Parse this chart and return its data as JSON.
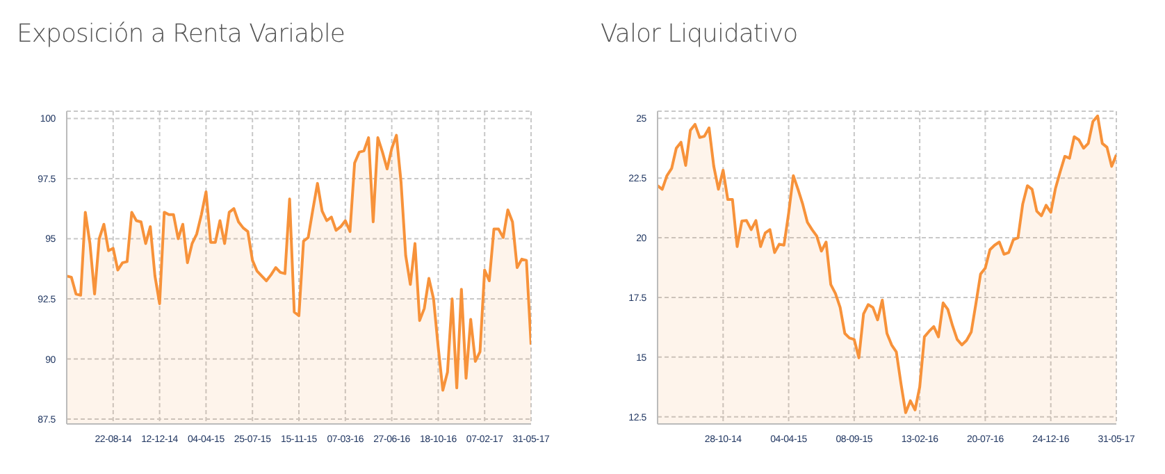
{
  "chart_data": [
    {
      "type": "area",
      "title": "Exposición a Renta Variable",
      "color": "#f7923a",
      "categories": [
        null,
        null,
        null,
        null,
        null,
        null,
        null,
        null,
        null,
        null,
        "22-08-14",
        null,
        null,
        null,
        null,
        null,
        null,
        null,
        null,
        null,
        "12-12-14",
        null,
        null,
        null,
        null,
        null,
        null,
        null,
        null,
        null,
        "04-04-15",
        null,
        null,
        null,
        null,
        null,
        null,
        null,
        null,
        null,
        "25-07-15",
        null,
        null,
        null,
        null,
        null,
        null,
        null,
        null,
        null,
        "15-11-15",
        null,
        null,
        null,
        null,
        null,
        null,
        null,
        null,
        null,
        "07-03-16",
        null,
        null,
        null,
        null,
        null,
        null,
        null,
        null,
        null,
        "27-06-16",
        null,
        null,
        null,
        null,
        null,
        null,
        null,
        null,
        null,
        "18-10-16",
        null,
        null,
        null,
        null,
        null,
        null,
        null,
        null,
        null,
        "07-02-17",
        null,
        null,
        null,
        null,
        null,
        null,
        null,
        null,
        null,
        "31-05-17"
      ],
      "values": [
        93.45,
        93.4,
        92.7,
        92.65,
        96.1,
        94.8,
        92.7,
        95,
        95.6,
        94.5,
        94.6,
        93.7,
        94,
        94.05,
        96.1,
        95.75,
        95.7,
        94.8,
        95.5,
        93.45,
        92.3,
        96.1,
        96,
        96,
        95,
        95.6,
        94,
        94.8,
        95.2,
        96,
        96.95,
        94.85,
        94.85,
        95.75,
        94.8,
        96.1,
        96.25,
        95.7,
        95.45,
        95.3,
        94.1,
        93.65,
        93.45,
        93.25,
        93.5,
        93.8,
        93.6,
        93.55,
        96.65,
        91.95,
        91.8,
        94.9,
        95.05,
        96.2,
        97.3,
        96.15,
        95.75,
        95.9,
        95.35,
        95.5,
        95.75,
        95.3,
        98.15,
        98.6,
        98.65,
        99.2,
        95.7,
        99.2,
        98.6,
        97.9,
        98.75,
        99.3,
        97.35,
        94.3,
        93.1,
        94.8,
        91.6,
        92.1,
        93.35,
        92.5,
        90.5,
        88.7,
        89.45,
        92.5,
        88.8,
        92.9,
        89.2,
        91.65,
        89.9,
        90.3,
        93.7,
        93.25,
        95.4,
        95.4,
        95.05,
        96.2,
        95.7,
        93.8,
        94.15,
        94.1,
        90.6
      ],
      "ylim": [
        87.3,
        100.3
      ],
      "yticks": [
        87.5,
        90,
        92.5,
        95,
        97.5,
        100
      ],
      "grid": true
    },
    {
      "type": "area",
      "title": "Valor Liquidativo",
      "color": "#f7923a",
      "categories": [
        null,
        null,
        null,
        null,
        null,
        null,
        null,
        null,
        null,
        null,
        null,
        null,
        null,
        null,
        "28-10-14",
        null,
        null,
        null,
        null,
        null,
        null,
        null,
        null,
        null,
        null,
        null,
        null,
        null,
        "04-04-15",
        null,
        null,
        null,
        null,
        null,
        null,
        null,
        null,
        null,
        null,
        null,
        null,
        null,
        "08-09-15",
        null,
        null,
        null,
        null,
        null,
        null,
        null,
        null,
        null,
        null,
        null,
        null,
        null,
        "13-02-16",
        null,
        null,
        null,
        null,
        null,
        null,
        null,
        null,
        null,
        null,
        null,
        null,
        null,
        "20-07-16",
        null,
        null,
        null,
        null,
        null,
        null,
        null,
        null,
        null,
        null,
        null,
        null,
        null,
        "24-12-16",
        null,
        null,
        null,
        null,
        null,
        null,
        null,
        null,
        null,
        null,
        null,
        null,
        null,
        "31-05-17"
      ],
      "values": [
        22.18,
        22.03,
        22.6,
        22.9,
        23.75,
        24,
        23.03,
        24.5,
        24.75,
        24.2,
        24.25,
        24.6,
        23,
        22.03,
        22.83,
        21.6,
        21.6,
        19.63,
        20.7,
        20.72,
        20.34,
        20.72,
        19.63,
        20.2,
        20.34,
        19.38,
        19.73,
        19.69,
        21.03,
        22.6,
        22.03,
        21.41,
        20.65,
        20.34,
        20.07,
        19.44,
        19.82,
        18.04,
        17.66,
        17.08,
        15.99,
        15.8,
        15.74,
        14.97,
        16.81,
        17.2,
        17.08,
        16.56,
        17.39,
        15.99,
        15.51,
        15.22,
        13.88,
        12.67,
        13.17,
        12.79,
        13.75,
        15.85,
        16.08,
        16.28,
        15.85,
        17.27,
        17,
        16.32,
        15.74,
        15.51,
        15.7,
        16.05,
        17.24,
        18.48,
        18.73,
        19.5,
        19.69,
        19.82,
        19.31,
        19.38,
        19.92,
        20,
        21.41,
        22.18,
        22.03,
        21.11,
        20.92,
        21.36,
        21.07,
        22.07,
        22.76,
        23.41,
        23.33,
        24.23,
        24.1,
        23.75,
        23.95,
        24.87,
        25.1,
        23.95,
        23.79,
        22.99,
        23.47
      ],
      "ylim": [
        12.2,
        25.3
      ],
      "yticks": [
        12.5,
        15,
        17.5,
        20,
        22.5,
        25
      ],
      "grid": true
    }
  ]
}
